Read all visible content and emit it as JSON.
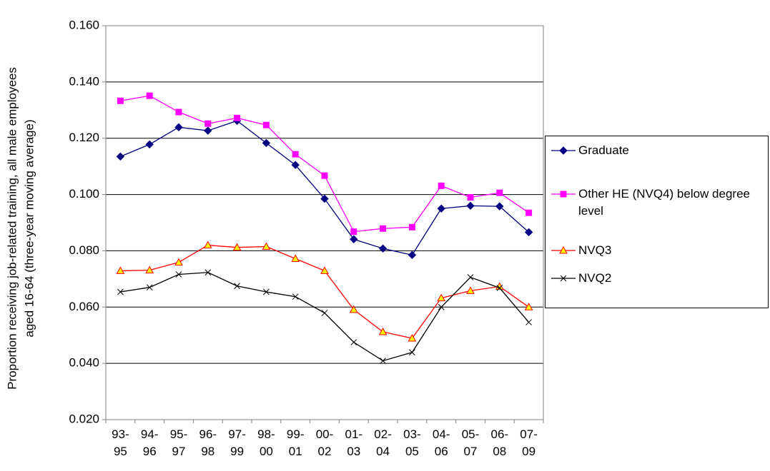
{
  "chart_data": {
    "type": "line",
    "y_label": [
      "Proportion receiving job-related training, all male employees",
      "aged 16-64 (three-year moving average)"
    ],
    "categories": [
      "93-95",
      "94-96",
      "95-97",
      "96-98",
      "97-99",
      "98-00",
      "99-01",
      "00-02",
      "01-03",
      "02-04",
      "03-05",
      "04-06",
      "05-07",
      "06-08",
      "07-09"
    ],
    "series": [
      {
        "name": "Graduate",
        "color": "#000080",
        "marker": "diamond",
        "marker_fill": "#000080",
        "values": [
          0.1135,
          0.1178,
          0.1239,
          0.1227,
          0.1262,
          0.1183,
          0.1105,
          0.0985,
          0.0841,
          0.0808,
          0.0785,
          0.095,
          0.096,
          0.0958,
          0.0866
        ]
      },
      {
        "name": "Other HE (NVQ4) below degree level",
        "color": "#ff00ff",
        "marker": "square",
        "marker_fill": "#ff00ff",
        "values": [
          0.1333,
          0.1351,
          0.1293,
          0.1252,
          0.1272,
          0.1247,
          0.1143,
          0.1067,
          0.0868,
          0.0879,
          0.0884,
          0.1031,
          0.099,
          0.1006,
          0.0935
        ]
      },
      {
        "name": "NVQ3",
        "color": "#ff0000",
        "marker": "triangle",
        "marker_fill": "#ffff00",
        "values": [
          0.0729,
          0.0731,
          0.0759,
          0.082,
          0.0812,
          0.0815,
          0.0772,
          0.0729,
          0.0591,
          0.0512,
          0.0489,
          0.0632,
          0.0658,
          0.0673,
          0.06
        ]
      },
      {
        "name": "NVQ2",
        "color": "#000000",
        "marker": "x",
        "marker_fill": "none",
        "values": [
          0.0654,
          0.067,
          0.0716,
          0.0723,
          0.0675,
          0.0654,
          0.0637,
          0.0579,
          0.0475,
          0.0409,
          0.0439,
          0.06,
          0.0706,
          0.0668,
          0.0546
        ]
      }
    ],
    "ylim": [
      0.02,
      0.16
    ],
    "yticks": [
      {
        "value": 0.02,
        "label": "0.020"
      },
      {
        "value": 0.04,
        "label": "0.040"
      },
      {
        "value": 0.06,
        "label": "0.060"
      },
      {
        "value": 0.08,
        "label": "0.080"
      },
      {
        "value": 0.1,
        "label": "0.100"
      },
      {
        "value": 0.12,
        "label": "0.120"
      },
      {
        "value": 0.14,
        "label": "0.140"
      },
      {
        "value": 0.16,
        "label": "0.160"
      }
    ],
    "grid": true,
    "legend": "right"
  }
}
